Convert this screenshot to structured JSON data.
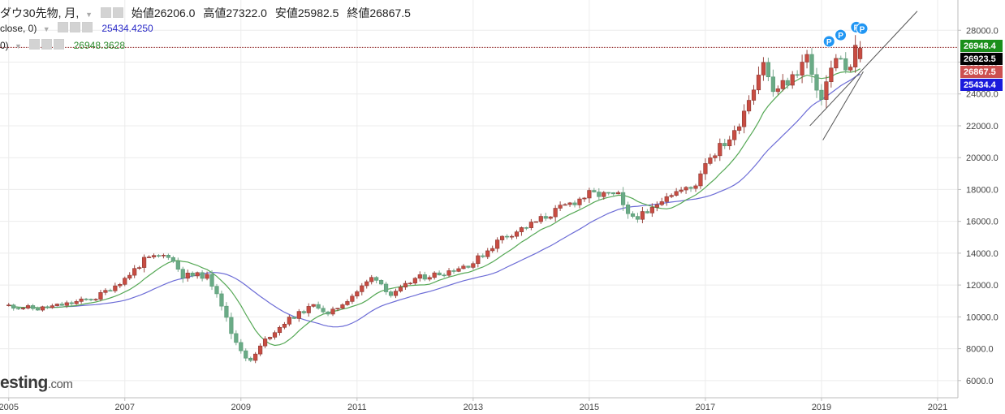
{
  "header": {
    "symbol": "ダウ30先物, 月,",
    "open_label": "始値",
    "open_value": "26206.0",
    "high_label": "高値",
    "high_value": "27322.0",
    "low_label": "安値",
    "low_value": "25982.5",
    "close_label": "終値",
    "close_value": "26867.5",
    "ma_long_label": "close, 0)",
    "ma_long_value": "25434.4250",
    "ma_short_label": "0)",
    "ma_short_value": "26948.3628"
  },
  "logo": {
    "brand": "esting",
    "domain": ".com"
  },
  "colors": {
    "up": "#c94c42",
    "down": "#6aab86",
    "ma_long": "#6c6cd6",
    "ma_short": "#55a855",
    "trend": "#555555",
    "marker": "#2196f3",
    "ref_line": "#8b1a1a"
  },
  "icons": {
    "settings": "gear-icon",
    "visibility": "eye-icon",
    "remove": "close-icon",
    "dropdown": "triangle-down-icon",
    "marker": "p-circle-icon"
  },
  "chart_data": {
    "type": "candlestick",
    "interval": "monthly",
    "ylim": [
      6000,
      29000
    ],
    "y_ticks": [
      6000,
      8000,
      10000,
      12000,
      14000,
      16000,
      18000,
      20000,
      22000,
      24000,
      26000,
      28000
    ],
    "y_tick_labels": [
      "6000.0",
      "8000.0",
      "10000.0",
      "12000.0",
      "14000.0",
      "16000.0",
      "18000.0",
      "20000.0",
      "22000.0",
      "24000.0",
      "26000.0",
      "28000.0"
    ],
    "x_ticks": [
      2005,
      2007,
      2009,
      2011,
      2013,
      2015,
      2017,
      2019,
      2021
    ],
    "x_tick_labels": [
      "2005",
      "2007",
      "2009",
      "2011",
      "2013",
      "2015",
      "2017",
      "2019",
      "2021"
    ],
    "grid": true,
    "anchors": [
      {
        "t": 2005.0,
        "c": 10700
      },
      {
        "t": 2005.5,
        "c": 10500
      },
      {
        "t": 2006.0,
        "c": 10800
      },
      {
        "t": 2006.5,
        "c": 11200
      },
      {
        "t": 2007.0,
        "c": 12400
      },
      {
        "t": 2007.35,
        "c": 13600
      },
      {
        "t": 2007.75,
        "c": 13900
      },
      {
        "t": 2008.0,
        "c": 12600
      },
      {
        "t": 2008.4,
        "c": 12600
      },
      {
        "t": 2008.6,
        "c": 11500
      },
      {
        "t": 2008.85,
        "c": 8800
      },
      {
        "t": 2009.15,
        "c": 7100
      },
      {
        "t": 2009.4,
        "c": 8500
      },
      {
        "t": 2009.8,
        "c": 9800
      },
      {
        "t": 2010.3,
        "c": 10800
      },
      {
        "t": 2010.5,
        "c": 10100
      },
      {
        "t": 2011.0,
        "c": 11600
      },
      {
        "t": 2011.3,
        "c": 12600
      },
      {
        "t": 2011.6,
        "c": 11300
      },
      {
        "t": 2012.0,
        "c": 12400
      },
      {
        "t": 2012.5,
        "c": 12800
      },
      {
        "t": 2013.0,
        "c": 13400
      },
      {
        "t": 2013.5,
        "c": 15000
      },
      {
        "t": 2014.0,
        "c": 15800
      },
      {
        "t": 2014.5,
        "c": 16800
      },
      {
        "t": 2015.0,
        "c": 17700
      },
      {
        "t": 2015.5,
        "c": 17600
      },
      {
        "t": 2015.65,
        "c": 16300
      },
      {
        "t": 2016.0,
        "c": 16400
      },
      {
        "t": 2016.3,
        "c": 17700
      },
      {
        "t": 2016.8,
        "c": 18100
      },
      {
        "t": 2017.0,
        "c": 19800
      },
      {
        "t": 2017.5,
        "c": 21500
      },
      {
        "t": 2018.0,
        "c": 26100
      },
      {
        "t": 2018.15,
        "c": 24100
      },
      {
        "t": 2018.5,
        "c": 25000
      },
      {
        "t": 2018.75,
        "c": 26400
      },
      {
        "t": 2018.95,
        "c": 23400
      },
      {
        "t": 2019.2,
        "c": 25900
      },
      {
        "t": 2019.35,
        "c": 26500
      },
      {
        "t": 2019.45,
        "c": 24800
      },
      {
        "t": 2019.55,
        "c": 26700
      },
      {
        "t": 2019.67,
        "c": 26867.5
      }
    ],
    "last_candle": {
      "open": 26206.0,
      "high": 27322.0,
      "low": 25982.5,
      "close": 26867.5
    },
    "price_labels": [
      {
        "value": 26948.4,
        "text": "26948.4",
        "bg": "#1a8f1a",
        "fg": "#ffffff"
      },
      {
        "value": 26923.5,
        "text": "26923.5",
        "bg": "#000000",
        "fg": "#ffffff"
      },
      {
        "value": 26867.5,
        "text": "26867.5",
        "bg": "#cc5050",
        "fg": "#ffffff"
      },
      {
        "value": 25434.4,
        "text": "25434.4",
        "bg": "#1a1adc",
        "fg": "#ffffff"
      }
    ],
    "ref_line_value": 26923.5,
    "trend_line": {
      "t1": 2018.8,
      "v1": 22000,
      "t2": 2020.65,
      "v2": 29200
    },
    "markers": [
      {
        "t": 2019.13,
        "v": 27300,
        "text": "P"
      },
      {
        "t": 2019.33,
        "v": 27700,
        "text": "P"
      },
      {
        "t": 2019.6,
        "v": 28200,
        "text": "P"
      },
      {
        "t": 2019.7,
        "v": 28100,
        "text": "P"
      }
    ]
  }
}
